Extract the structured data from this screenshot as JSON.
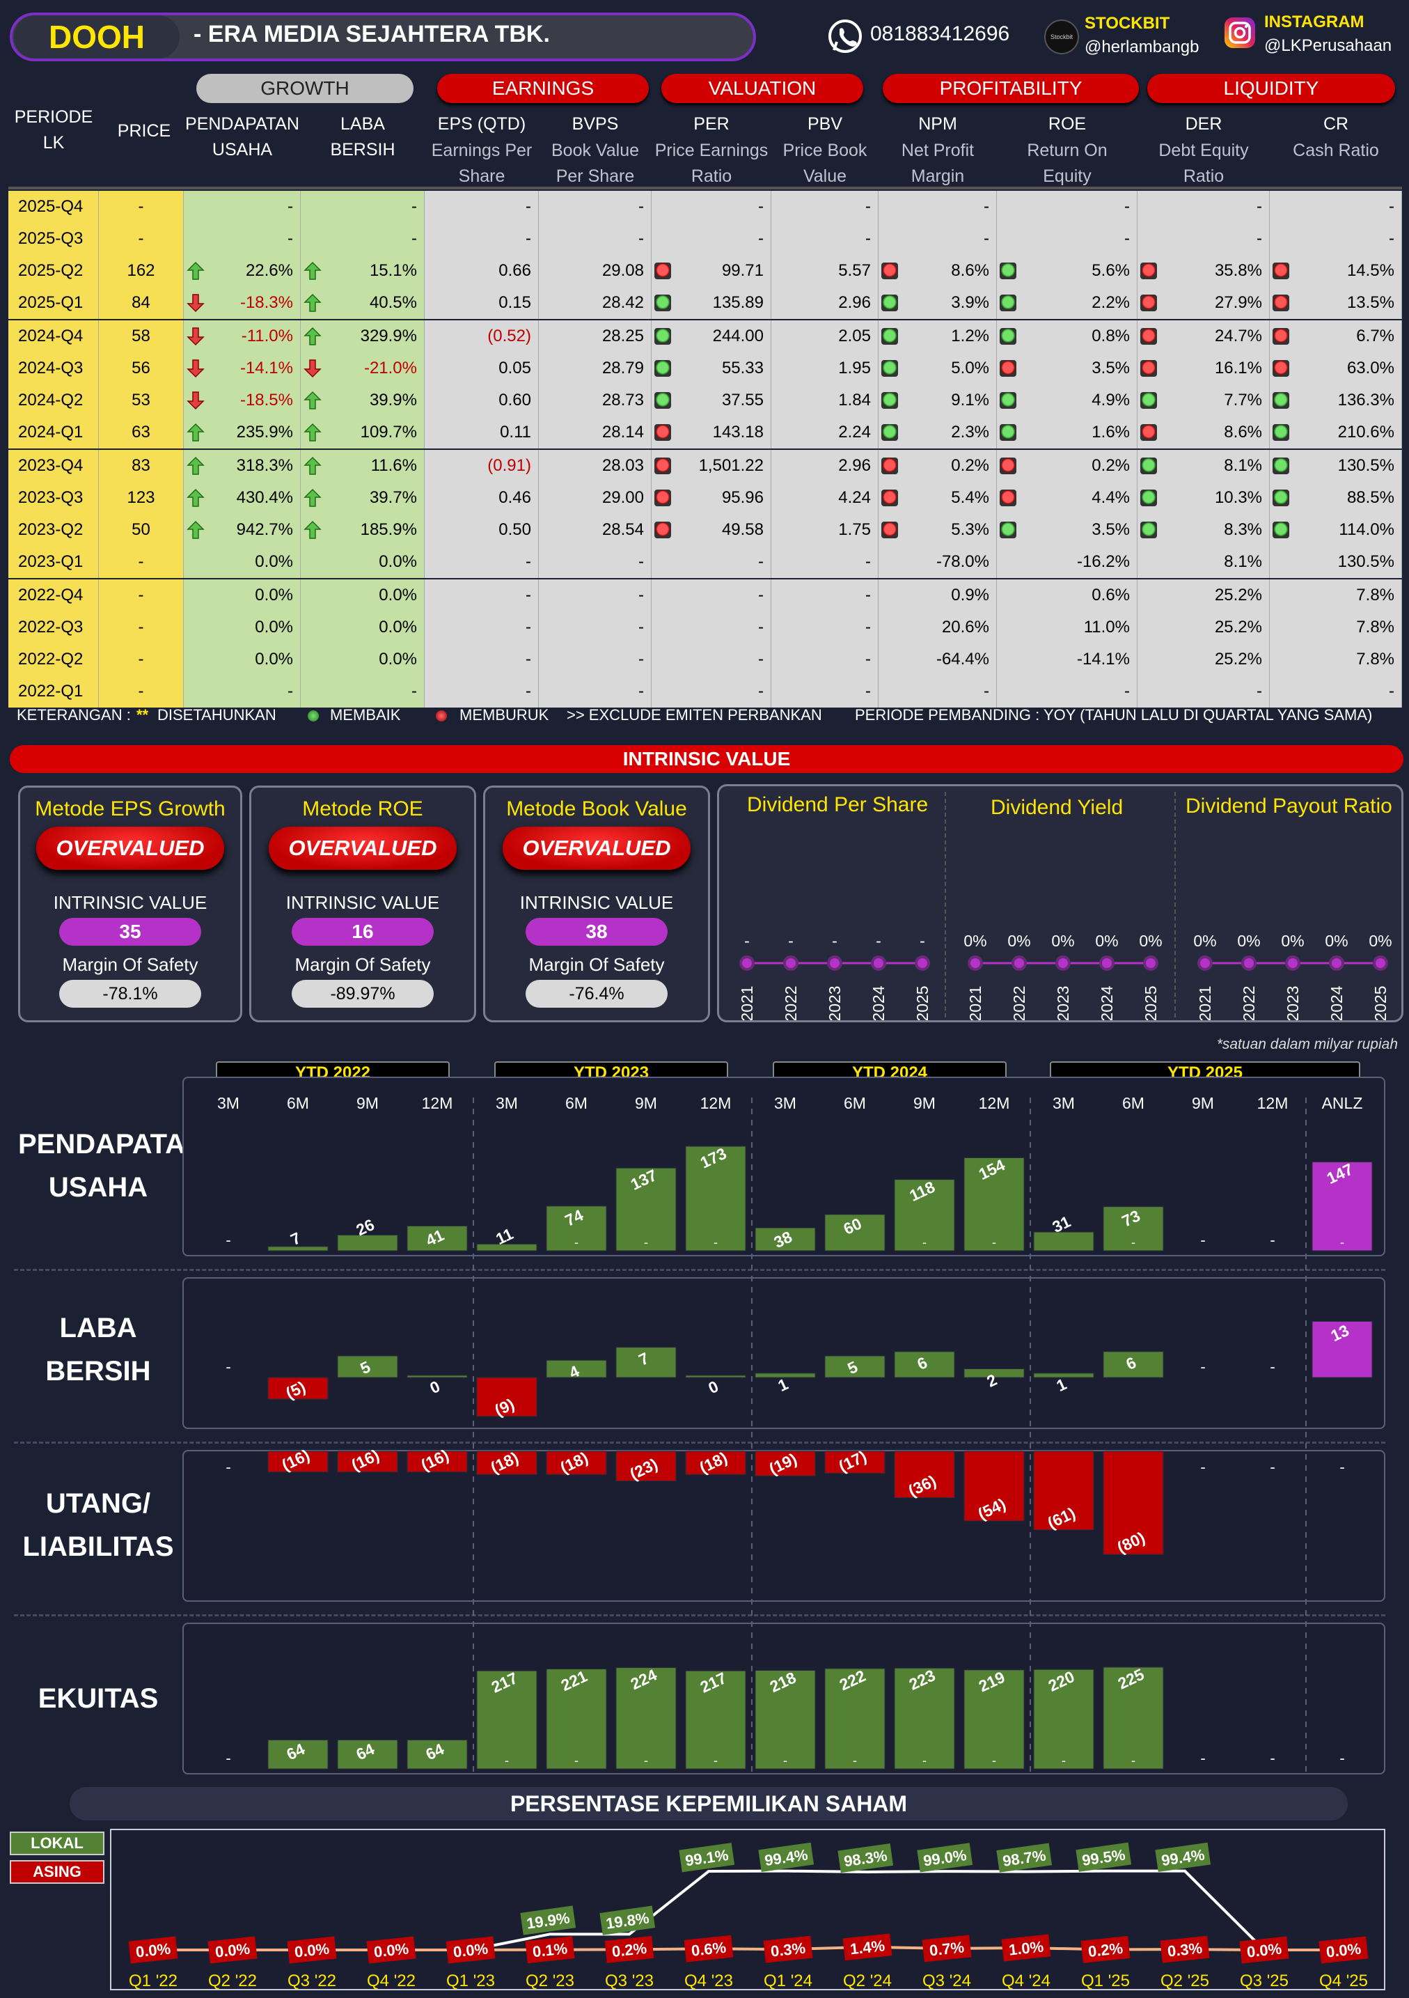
{
  "header": {
    "ticker": "DOOH",
    "company": "-  ERA MEDIA SEJAHTERA TBK.",
    "phone": "081883412696",
    "stockbit_label": "STOCKBIT",
    "stockbit_handle": "@herlambangb",
    "instagram_label": "INSTAGRAM",
    "instagram_handle": "@LKPerusahaan",
    "phone_icon": "whatsapp-icon",
    "stockbit_icon": "stockbit-logo",
    "instagram_icon": "instagram-icon"
  },
  "table": {
    "groups": [
      "GROWTH",
      "EARNINGS",
      "VALUATION",
      "PROFITABILITY",
      "LIQUIDITY"
    ],
    "col_periode": "PERIODE\nLK",
    "col_price": "PRICE",
    "columns": [
      {
        "title": "PENDAPATAN\nUSAHA",
        "sub": ""
      },
      {
        "title": "LABA\nBERSIH",
        "sub": ""
      },
      {
        "title": "EPS (QTD)",
        "sub": "Earnings Per\nShare"
      },
      {
        "title": "BVPS",
        "sub": "Book Value\nPer Share"
      },
      {
        "title": "PER",
        "sub": "Price Earnings\nRatio"
      },
      {
        "title": "PBV",
        "sub": "Price Book\nValue"
      },
      {
        "title": "NPM",
        "sub": "Net Profit\nMargin"
      },
      {
        "title": "ROE",
        "sub": "Return On\nEquity"
      },
      {
        "title": "DER",
        "sub": "Debt Equity\nRatio"
      },
      {
        "title": "CR",
        "sub": "Cash Ratio"
      }
    ],
    "rows": [
      {
        "p": "2025-Q4",
        "price": "-",
        "rev": "-",
        "ni": "-",
        "eps": "-",
        "bvps": "-",
        "per": "-",
        "pbv": "-",
        "npm": "-",
        "roe": "-",
        "der": "-",
        "cr": "-",
        "a1": "",
        "a2": "",
        "d1": "",
        "d2": "",
        "d3": "",
        "d4": ""
      },
      {
        "p": "2025-Q3",
        "price": "-",
        "rev": "-",
        "ni": "-",
        "eps": "-",
        "bvps": "-",
        "per": "-",
        "pbv": "-",
        "npm": "-",
        "roe": "-",
        "der": "-",
        "cr": "-",
        "a1": "",
        "a2": "",
        "d1": "",
        "d2": "",
        "d3": "",
        "d4": ""
      },
      {
        "p": "2025-Q2",
        "price": "162",
        "rev": "22.6%",
        "ni": "15.1%",
        "eps": "0.66",
        "bvps": "29.08",
        "per": "99.71",
        "pbv": "5.57",
        "npm": "8.6%",
        "roe": "5.6%",
        "der": "35.8%",
        "cr": "14.5%",
        "a1": "up",
        "a2": "up",
        "d1": "r",
        "d2": "r",
        "d3": "g",
        "d4": "r",
        "d5": "r"
      },
      {
        "p": "2025-Q1",
        "price": "84",
        "rev": "-18.3%",
        "ni": "40.5%",
        "eps": "0.15",
        "bvps": "28.42",
        "per": "135.89",
        "pbv": "2.96",
        "npm": "3.9%",
        "roe": "2.2%",
        "der": "27.9%",
        "cr": "13.5%",
        "a1": "down",
        "a2": "up",
        "d1": "g",
        "d2": "g",
        "d3": "g",
        "d4": "r",
        "d5": "r"
      },
      {
        "p": "2024-Q4",
        "price": "58",
        "rev": "-11.0%",
        "ni": "329.9%",
        "eps": "(0.52)",
        "bvps": "28.25",
        "per": "244.00",
        "pbv": "2.05",
        "npm": "1.2%",
        "roe": "0.8%",
        "der": "24.7%",
        "cr": "6.7%",
        "a1": "down",
        "a2": "up",
        "d1": "g",
        "d2": "g",
        "d3": "g",
        "d4": "r",
        "d5": "r"
      },
      {
        "p": "2024-Q3",
        "price": "56",
        "rev": "-14.1%",
        "ni": "-21.0%",
        "eps": "0.05",
        "bvps": "28.79",
        "per": "55.33",
        "pbv": "1.95",
        "npm": "5.0%",
        "roe": "3.5%",
        "der": "16.1%",
        "cr": "63.0%",
        "a1": "down",
        "a2": "down",
        "d1": "g",
        "d2": "g",
        "d3": "r",
        "d4": "r",
        "d5": "r"
      },
      {
        "p": "2024-Q2",
        "price": "53",
        "rev": "-18.5%",
        "ni": "39.9%",
        "eps": "0.60",
        "bvps": "28.73",
        "per": "37.55",
        "pbv": "1.84",
        "npm": "9.1%",
        "roe": "4.9%",
        "der": "7.7%",
        "cr": "136.3%",
        "a1": "down",
        "a2": "up",
        "d1": "g",
        "d2": "g",
        "d3": "g",
        "d4": "g",
        "d5": "g"
      },
      {
        "p": "2024-Q1",
        "price": "63",
        "rev": "235.9%",
        "ni": "109.7%",
        "eps": "0.11",
        "bvps": "28.14",
        "per": "143.18",
        "pbv": "2.24",
        "npm": "2.3%",
        "roe": "1.6%",
        "der": "8.6%",
        "cr": "210.6%",
        "a1": "up",
        "a2": "up",
        "d1": "r",
        "d2": "g",
        "d3": "g",
        "d4": "r",
        "d5": "g"
      },
      {
        "p": "2023-Q4",
        "price": "83",
        "rev": "318.3%",
        "ni": "11.6%",
        "eps": "(0.91)",
        "bvps": "28.03",
        "per": "1,501.22",
        "pbv": "2.96",
        "npm": "0.2%",
        "roe": "0.2%",
        "der": "8.1%",
        "cr": "130.5%",
        "a1": "up",
        "a2": "up",
        "d1": "r",
        "d2": "r",
        "d3": "r",
        "d4": "g",
        "d5": "g"
      },
      {
        "p": "2023-Q3",
        "price": "123",
        "rev": "430.4%",
        "ni": "39.7%",
        "eps": "0.46",
        "bvps": "29.00",
        "per": "95.96",
        "pbv": "4.24",
        "npm": "5.4%",
        "roe": "4.4%",
        "der": "10.3%",
        "cr": "88.5%",
        "a1": "up",
        "a2": "up",
        "d1": "r",
        "d2": "r",
        "d3": "r",
        "d4": "g",
        "d5": "g"
      },
      {
        "p": "2023-Q2",
        "price": "50",
        "rev": "942.7%",
        "ni": "185.9%",
        "eps": "0.50",
        "bvps": "28.54",
        "per": "49.58",
        "pbv": "1.75",
        "npm": "5.3%",
        "roe": "3.5%",
        "der": "8.3%",
        "cr": "114.0%",
        "a1": "up",
        "a2": "up",
        "d1": "r",
        "d2": "r",
        "d3": "g",
        "d4": "g",
        "d5": "g"
      },
      {
        "p": "2023-Q1",
        "price": "-",
        "rev": "0.0%",
        "ni": "0.0%",
        "eps": "-",
        "bvps": "-",
        "per": "-",
        "pbv": "-",
        "npm": "-78.0%",
        "roe": "-16.2%",
        "der": "8.1%",
        "cr": "130.5%",
        "a1": "",
        "a2": ""
      },
      {
        "p": "2022-Q4",
        "price": "-",
        "rev": "0.0%",
        "ni": "0.0%",
        "eps": "-",
        "bvps": "-",
        "per": "-",
        "pbv": "-",
        "npm": "0.9%",
        "roe": "0.6%",
        "der": "25.2%",
        "cr": "7.8%",
        "a1": "",
        "a2": ""
      },
      {
        "p": "2022-Q3",
        "price": "-",
        "rev": "0.0%",
        "ni": "0.0%",
        "eps": "-",
        "bvps": "-",
        "per": "-",
        "pbv": "-",
        "npm": "20.6%",
        "roe": "11.0%",
        "der": "25.2%",
        "cr": "7.8%",
        "a1": "",
        "a2": ""
      },
      {
        "p": "2022-Q2",
        "price": "-",
        "rev": "0.0%",
        "ni": "0.0%",
        "eps": "-",
        "bvps": "-",
        "per": "-",
        "pbv": "-",
        "npm": "-64.4%",
        "roe": "-14.1%",
        "der": "25.2%",
        "cr": "7.8%",
        "a1": "",
        "a2": ""
      },
      {
        "p": "2022-Q1",
        "price": "-",
        "rev": "-",
        "ni": "-",
        "eps": "-",
        "bvps": "-",
        "per": "-",
        "pbv": "-",
        "npm": "-",
        "roe": "-",
        "der": "-",
        "cr": "-",
        "a1": "",
        "a2": ""
      }
    ],
    "legend": {
      "label": "KETERANGAN :",
      "stars": "**",
      "disetahunkan": "DISETAHUNKAN",
      "membaik": "MEMBAIK",
      "memburuk": "MEMBURUK",
      "exclude": ">> EXCLUDE EMITEN PERBANKAN",
      "periode": "PERIODE PEMBANDING : YOY (TAHUN LALU DI QUARTAL YANG SAMA)"
    }
  },
  "intrinsic": {
    "banner": "INTRINSIC VALUE",
    "methods": [
      {
        "title": "Metode EPS Growth",
        "status": "OVERVALUED",
        "iv_label": "INTRINSIC VALUE",
        "iv": "35",
        "mos_label": "Margin Of Safety",
        "mos": "-78.1%"
      },
      {
        "title": "Metode ROE",
        "status": "OVERVALUED",
        "iv_label": "INTRINSIC VALUE",
        "iv": "16",
        "mos_label": "Margin Of Safety",
        "mos": "-89.97%"
      },
      {
        "title": "Metode Book Value",
        "status": "OVERVALUED",
        "iv_label": "INTRINSIC VALUE",
        "iv": "38",
        "mos_label": "Margin Of Safety",
        "mos": "-76.4%"
      }
    ],
    "dividend": {
      "titles": [
        "Dividend Per Share",
        "Dividend Yield",
        "Dividend Payout Ratio"
      ],
      "years": [
        "2021",
        "2022",
        "2023",
        "2024",
        "2025"
      ],
      "dps": [
        "-",
        "-",
        "-",
        "-",
        "-"
      ],
      "yield": [
        "0%",
        "0%",
        "0%",
        "0%",
        "0%"
      ],
      "payout": [
        "0%",
        "0%",
        "0%",
        "0%",
        "0%"
      ]
    }
  },
  "charts": {
    "note": "*satuan dalam milyar rupiah",
    "ytd_labels": [
      "YTD 2022",
      "YTD 2023",
      "YTD 2024",
      "YTD 2025"
    ],
    "periods": [
      "3M",
      "6M",
      "9M",
      "12M",
      "3M",
      "6M",
      "9M",
      "12M",
      "3M",
      "6M",
      "9M",
      "12M",
      "3M",
      "6M",
      "9M",
      "12M",
      "ANLZ"
    ],
    "row_labels": [
      "PENDAPATAN\nUSAHA",
      "LABA\nBERSIH",
      "UTANG/\nLIABILITAS",
      "EKUITAS"
    ]
  },
  "chart_data": [
    {
      "type": "bar",
      "title": "PENDAPATAN USAHA",
      "categories": [
        "3M '22",
        "6M '22",
        "9M '22",
        "12M '22",
        "3M '23",
        "6M '23",
        "9M '23",
        "12M '23",
        "3M '24",
        "6M '24",
        "9M '24",
        "12M '24",
        "3M '25",
        "6M '25",
        "9M '25",
        "12M '25",
        "ANLZ"
      ],
      "values": [
        null,
        7,
        26,
        41,
        11,
        74,
        137,
        173,
        38,
        60,
        118,
        154,
        31,
        73,
        null,
        null,
        147
      ],
      "labels": [
        "-",
        "7",
        "26",
        "41",
        "11",
        "74",
        "137",
        "173",
        "38",
        "60",
        "118",
        "154",
        "31",
        "73",
        "-",
        "-",
        "147"
      ]
    },
    {
      "type": "bar",
      "title": "LABA BERSIH",
      "categories": [
        "3M '22",
        "6M '22",
        "9M '22",
        "12M '22",
        "3M '23",
        "6M '23",
        "9M '23",
        "12M '23",
        "3M '24",
        "6M '24",
        "9M '24",
        "12M '24",
        "3M '25",
        "6M '25",
        "9M '25",
        "12M '25",
        "ANLZ"
      ],
      "values": [
        null,
        -5,
        5,
        0,
        -9,
        4,
        7,
        0,
        1,
        5,
        6,
        2,
        1,
        6,
        null,
        null,
        13
      ],
      "labels": [
        "-",
        "(5)",
        "5",
        "0",
        "(9)",
        "4",
        "7",
        "0",
        "1",
        "5",
        "6",
        "2",
        "1",
        "6",
        "-",
        "-",
        "13"
      ]
    },
    {
      "type": "bar",
      "title": "UTANG/ LIABILITAS",
      "categories": [
        "3M '22",
        "6M '22",
        "9M '22",
        "12M '22",
        "3M '23",
        "6M '23",
        "9M '23",
        "12M '23",
        "3M '24",
        "6M '24",
        "9M '24",
        "12M '24",
        "3M '25",
        "6M '25",
        "9M '25",
        "12M '25",
        "ANLZ"
      ],
      "values": [
        null,
        -16,
        -16,
        -16,
        -18,
        -18,
        -23,
        -18,
        -19,
        -17,
        -36,
        -54,
        -61,
        -80,
        null,
        null,
        null
      ],
      "labels": [
        "-",
        "(16)",
        "(16)",
        "(16)",
        "(18)",
        "(18)",
        "(23)",
        "(18)",
        "(19)",
        "(17)",
        "(36)",
        "(54)",
        "(61)",
        "(80)",
        "-",
        "-",
        "-"
      ]
    },
    {
      "type": "bar",
      "title": "EKUITAS",
      "categories": [
        "3M '22",
        "6M '22",
        "9M '22",
        "12M '22",
        "3M '23",
        "6M '23",
        "9M '23",
        "12M '23",
        "3M '24",
        "6M '24",
        "9M '24",
        "12M '24",
        "3M '25",
        "6M '25",
        "9M '25",
        "12M '25",
        "ANLZ"
      ],
      "values": [
        null,
        64,
        64,
        64,
        217,
        221,
        224,
        217,
        218,
        222,
        223,
        219,
        220,
        225,
        null,
        null,
        null
      ],
      "labels": [
        "-",
        "64",
        "64",
        "64",
        "217",
        "221",
        "224",
        "217",
        "218",
        "222",
        "223",
        "219",
        "220",
        "225",
        "-",
        "-",
        "-"
      ]
    },
    {
      "type": "line",
      "title": "PERSENTASE KEPEMILIKAN SAHAM",
      "x": [
        "Q1 '22",
        "Q2 '22",
        "Q3 '22",
        "Q4 '22",
        "Q1 '23",
        "Q2 '23",
        "Q3 '23",
        "Q4 '23",
        "Q1 '24",
        "Q2 '24",
        "Q3 '24",
        "Q4 '24",
        "Q1 '25",
        "Q2 '25",
        "Q3 '25",
        "Q4 '25"
      ],
      "series": [
        {
          "name": "LOKAL",
          "values": [
            0,
            0,
            0,
            0,
            0,
            19.9,
            19.8,
            99.1,
            99.4,
            98.3,
            99.0,
            98.7,
            99.5,
            99.4,
            0,
            0
          ],
          "labels": [
            "",
            "",
            "",
            "",
            "",
            "19.9%",
            "19.8%",
            "99.1%",
            "99.4%",
            "98.3%",
            "99.0%",
            "98.7%",
            "99.5%",
            "99.4%",
            "",
            ""
          ]
        },
        {
          "name": "ASING",
          "values": [
            0.0,
            0.0,
            0.0,
            0.0,
            0.0,
            0.1,
            0.2,
            0.6,
            0.3,
            1.4,
            0.7,
            1.0,
            0.2,
            0.3,
            0.0,
            0.0
          ],
          "labels": [
            "0.0%",
            "0.0%",
            "0.0%",
            "0.0%",
            "0.0%",
            "0.1%",
            "0.2%",
            "0.6%",
            "0.3%",
            "1.4%",
            "0.7%",
            "1.0%",
            "0.2%",
            "0.3%",
            "0.0%",
            "0.0%"
          ]
        }
      ]
    }
  ],
  "colors": {
    "bar_green": "#548235",
    "bar_red": "#c00000",
    "bar_purple": "#b532c8",
    "accent_yellow": "#ffe600"
  }
}
